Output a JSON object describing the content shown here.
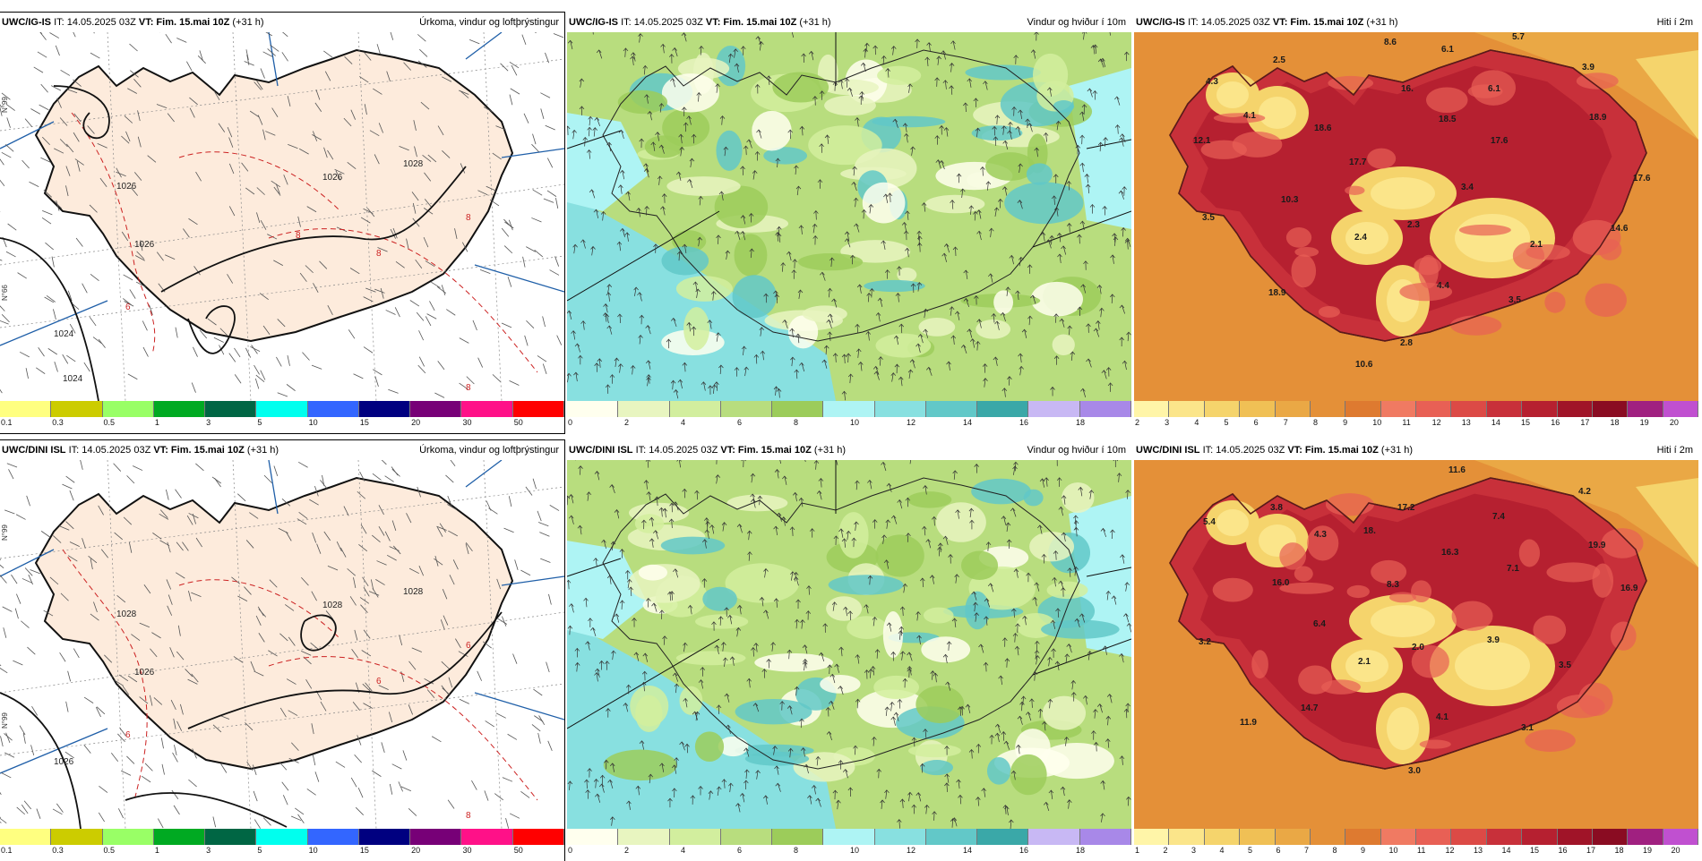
{
  "headers": {
    "model_top": "UWC/IG-IS",
    "model_bottom": "UWC/DINI ISL",
    "it": "IT: 14.05.2025 03Z",
    "vt_label": "VT:",
    "vt_value": "Fim. 15.mai 10Z",
    "lead": "(+31 h)",
    "title_precip": "Úrkoma, vindur og loftþrýstingur",
    "title_wind": "Vindur og hviður í 10m",
    "title_temp": "Hiti í 2m"
  },
  "scales": {
    "precip": {
      "colors": [
        "#ffff80",
        "#cccc00",
        "#99ff66",
        "#00aa22",
        "#006644",
        "#00ffee",
        "#3366ff",
        "#000080",
        "#770077",
        "#ff1188",
        "#ff0000"
      ],
      "ticks": [
        "0.1",
        "0.3",
        "0.5",
        "1",
        "3",
        "5",
        "10",
        "15",
        "20",
        "30",
        "50"
      ]
    },
    "wind": {
      "colors": [
        "#ffffee",
        "#e8f5c0",
        "#d2ee9e",
        "#b8dd7e",
        "#9ccc5a",
        "#aef4f4",
        "#88e0e0",
        "#62c8c8",
        "#3aa8a8",
        "#c8b8f4",
        "#a888e8"
      ],
      "ticks": [
        "0",
        "2",
        "4",
        "6",
        "8",
        "10",
        "12",
        "14",
        "16",
        "18"
      ]
    },
    "temp_top": {
      "colors": [
        "#fff5a8",
        "#fbe58a",
        "#f5d46c",
        "#f0c055",
        "#eaa845",
        "#e49038",
        "#de7a30",
        "#f07a62",
        "#e86055",
        "#dc4a46",
        "#c8303a",
        "#b62030",
        "#a01428",
        "#8a0c22",
        "#a02080",
        "#c050d0"
      ],
      "ticks": [
        "2",
        "3",
        "4",
        "5",
        "6",
        "7",
        "8",
        "9",
        "10",
        "11",
        "12",
        "13",
        "14",
        "15",
        "16",
        "17",
        "18",
        "19",
        "20"
      ]
    },
    "temp_bottom": {
      "ticks": [
        "1",
        "2",
        "3",
        "4",
        "5",
        "6",
        "7",
        "8",
        "9",
        "10",
        "11",
        "12",
        "13",
        "14",
        "15",
        "16",
        "17",
        "18",
        "19",
        "20"
      ]
    }
  },
  "maps": {
    "precip_top": {
      "isobars": [
        "1024",
        "1026",
        "1026",
        "1026",
        "1028",
        "1024"
      ],
      "isotherms": [
        "6",
        "8",
        "8",
        "8",
        "8"
      ],
      "lat_labels": [
        "N°66",
        "N°99"
      ]
    },
    "precip_bottom": {
      "isobars": [
        "1026",
        "1028",
        "1028",
        "1026",
        "1028"
      ],
      "isotherms": [
        "6",
        "6",
        "6",
        "8"
      ],
      "lat_labels": [
        "N°99",
        "N°99"
      ]
    },
    "temp_top": {
      "values": [
        {
          "t": "8.6",
          "x": 279,
          "y": 14
        },
        {
          "t": "6.1",
          "x": 343,
          "y": 22
        },
        {
          "t": "5.7",
          "x": 422,
          "y": 8
        },
        {
          "t": "2.5",
          "x": 155,
          "y": 34
        },
        {
          "t": "4.3",
          "x": 80,
          "y": 58
        },
        {
          "t": "3.9",
          "x": 500,
          "y": 42
        },
        {
          "t": "16.",
          "x": 298,
          "y": 66
        },
        {
          "t": "6.1",
          "x": 395,
          "y": 66
        },
        {
          "t": "4.1",
          "x": 122,
          "y": 96
        },
        {
          "t": "18.5",
          "x": 340,
          "y": 100
        },
        {
          "t": "18.6",
          "x": 201,
          "y": 110
        },
        {
          "t": "18.9",
          "x": 508,
          "y": 98
        },
        {
          "t": "12.1",
          "x": 66,
          "y": 124
        },
        {
          "t": "17.6",
          "x": 398,
          "y": 124
        },
        {
          "t": "17.7",
          "x": 240,
          "y": 148
        },
        {
          "t": "17.6",
          "x": 557,
          "y": 166
        },
        {
          "t": "3.4",
          "x": 365,
          "y": 176
        },
        {
          "t": "10.3",
          "x": 164,
          "y": 190
        },
        {
          "t": "3.5",
          "x": 76,
          "y": 210
        },
        {
          "t": "2.3",
          "x": 305,
          "y": 218
        },
        {
          "t": "14.6",
          "x": 532,
          "y": 222
        },
        {
          "t": "2.4",
          "x": 246,
          "y": 232
        },
        {
          "t": "2.1",
          "x": 442,
          "y": 240
        },
        {
          "t": "4.4",
          "x": 338,
          "y": 286
        },
        {
          "t": "18.9",
          "x": 150,
          "y": 294
        },
        {
          "t": "3.5",
          "x": 418,
          "y": 302
        },
        {
          "t": "2.8",
          "x": 297,
          "y": 350
        },
        {
          "t": "10.6",
          "x": 247,
          "y": 374
        }
      ]
    },
    "temp_bottom": {
      "values": [
        {
          "t": "11.6",
          "x": 351,
          "y": 14
        },
        {
          "t": "4.2",
          "x": 496,
          "y": 38
        },
        {
          "t": "3.8",
          "x": 152,
          "y": 56
        },
        {
          "t": "17.2",
          "x": 294,
          "y": 56
        },
        {
          "t": "7.4",
          "x": 400,
          "y": 66
        },
        {
          "t": "5.4",
          "x": 77,
          "y": 72
        },
        {
          "t": "4.3",
          "x": 201,
          "y": 86
        },
        {
          "t": "18.",
          "x": 256,
          "y": 82
        },
        {
          "t": "16.3",
          "x": 343,
          "y": 106
        },
        {
          "t": "19.9",
          "x": 507,
          "y": 98
        },
        {
          "t": "7.1",
          "x": 416,
          "y": 124
        },
        {
          "t": "16.0",
          "x": 154,
          "y": 140
        },
        {
          "t": "8.3",
          "x": 282,
          "y": 142
        },
        {
          "t": "16.9",
          "x": 543,
          "y": 146
        },
        {
          "t": "6.4",
          "x": 200,
          "y": 186
        },
        {
          "t": "3.2",
          "x": 72,
          "y": 206
        },
        {
          "t": "3.9",
          "x": 394,
          "y": 204
        },
        {
          "t": "2.0",
          "x": 310,
          "y": 212
        },
        {
          "t": "2.1",
          "x": 250,
          "y": 228
        },
        {
          "t": "3.5",
          "x": 474,
          "y": 232
        },
        {
          "t": "14.7",
          "x": 186,
          "y": 280
        },
        {
          "t": "4.1",
          "x": 337,
          "y": 290
        },
        {
          "t": "11.9",
          "x": 118,
          "y": 296
        },
        {
          "t": "3.1",
          "x": 432,
          "y": 302
        },
        {
          "t": "3.0",
          "x": 306,
          "y": 350
        }
      ]
    }
  }
}
